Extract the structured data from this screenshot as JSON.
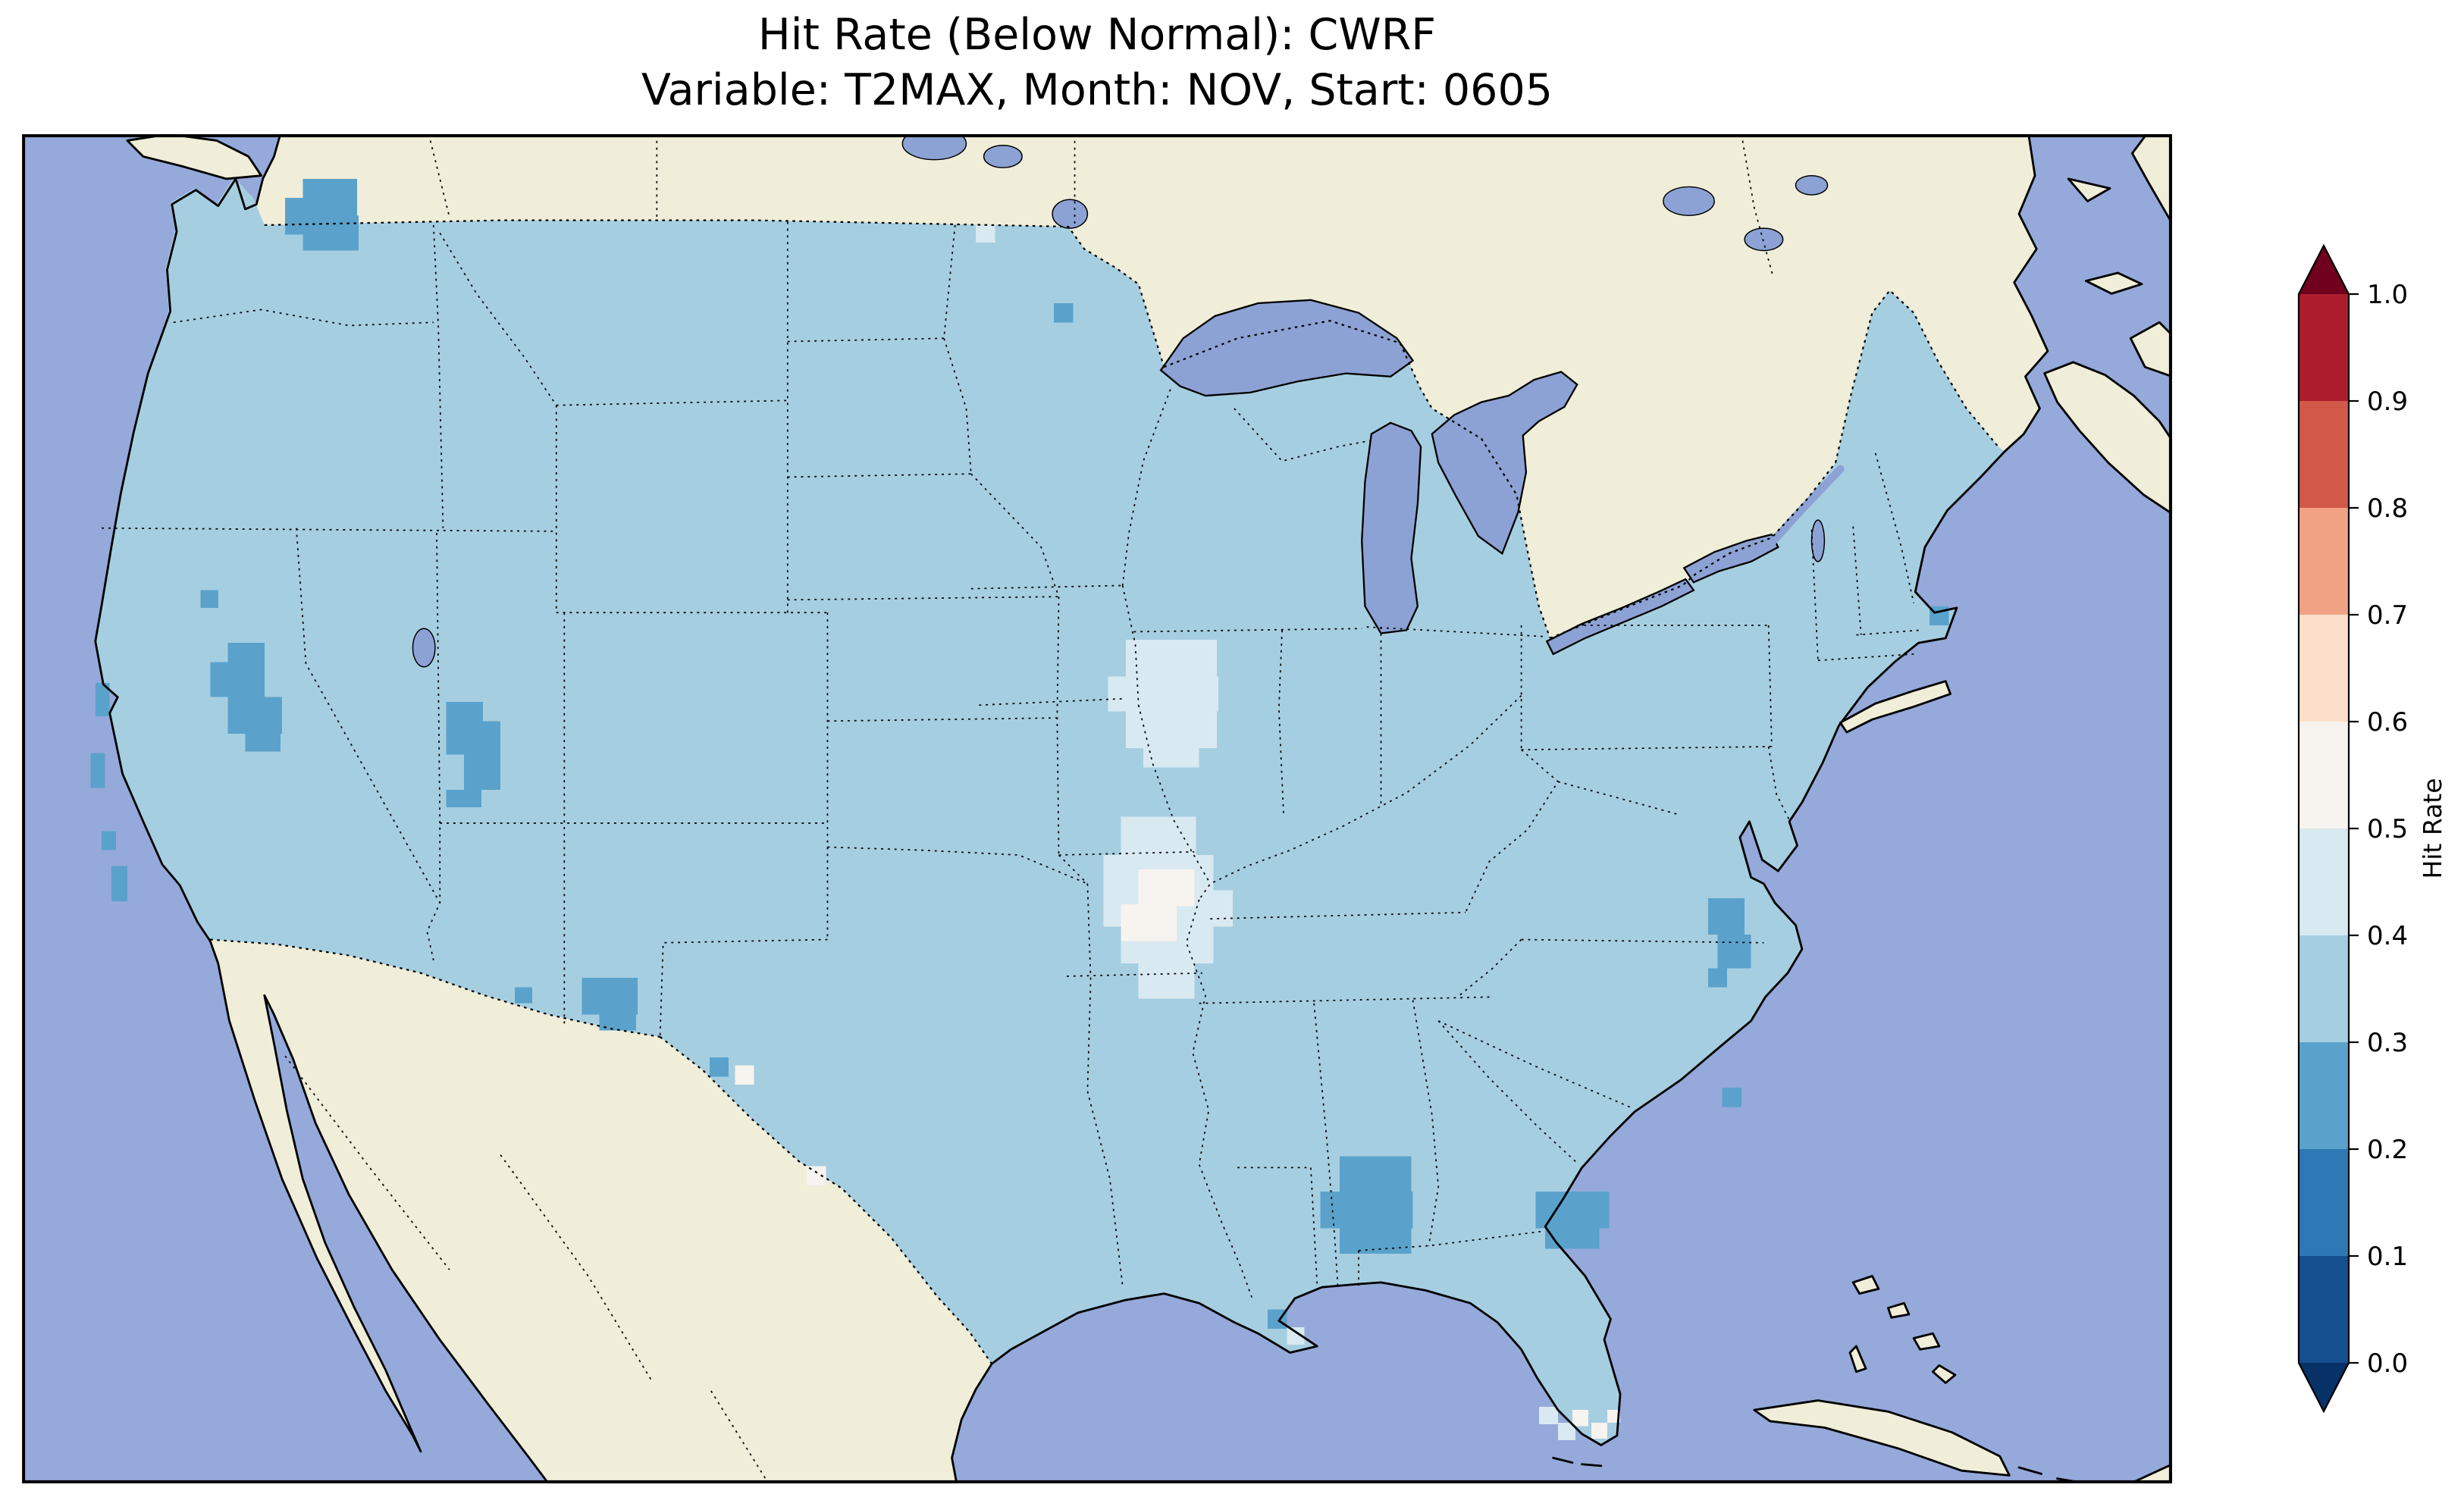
{
  "title": {
    "line1": "Hit Rate (Below Normal): CWRF",
    "line2": "Variable: T2MAX, Month: NOV, Start: 0605"
  },
  "colorbar": {
    "label": "Hit Rate",
    "ticks": [
      "1.0",
      "0.9",
      "0.8",
      "0.7",
      "0.6",
      "0.5",
      "0.4",
      "0.3",
      "0.2",
      "0.1",
      "0.0"
    ],
    "bins": [
      {
        "range": "0.9-1.0",
        "color": "#ab1c2c"
      },
      {
        "range": "0.8-0.9",
        "color": "#d25849"
      },
      {
        "range": "0.7-0.8",
        "color": "#f1a284"
      },
      {
        "range": "0.6-0.7",
        "color": "#fbdfca"
      },
      {
        "range": "0.5-0.6",
        "color": "#f7f3ef"
      },
      {
        "range": "0.4-0.5",
        "color": "#d9e9f1"
      },
      {
        "range": "0.3-0.4",
        "color": "#a6cee1"
      },
      {
        "range": "0.2-0.3",
        "color": "#5aa2cb"
      },
      {
        "range": "0.1-0.2",
        "color": "#2e78b5"
      },
      {
        "range": "0.0-0.1",
        "color": "#144f90"
      }
    ],
    "bin_colors": {
      "0.0-0.1": "#144f90",
      "0.1-0.2": "#2e78b5",
      "0.2-0.3": "#5aa2cb",
      "0.3-0.4": "#a6cee1",
      "0.4-0.5": "#d9e9f1",
      "0.5-0.6": "#f7f3ef",
      "0.6-0.7": "#fbdfca",
      "0.7-0.8": "#f1a284",
      "0.8-0.9": "#d25849",
      "0.9-1.0": "#ab1c2c"
    },
    "extend_over": "#71001f",
    "extend_under": "#083168"
  },
  "map": {
    "colors": {
      "ocean": "#95a9da",
      "land": "#f0edd9",
      "lake": "#8ca2d4",
      "fill_main": "#a6cee1"
    }
  },
  "chart_data": {
    "type": "heatmap",
    "title": "Hit Rate (Below Normal): CWRF",
    "subtitle": "Variable: T2MAX, Month: NOV, Start: 0605",
    "model": "CWRF",
    "variable": "T2MAX",
    "month": "NOV",
    "start": "0605",
    "colorbar_label": "Hit Rate",
    "colorbar_range": [
      0.0,
      1.0
    ],
    "colorbar_step": 0.1,
    "colormap": "RdBu reversed (dark blue = 0.0, dark red = 1.0), extend both ends",
    "legend_position": "right",
    "geography": "Continental United States with surrounding Canada, Mexico, Gulf of Mexico, Cuba and Atlantic",
    "base_value_bin": "0.3-0.4",
    "regions": [
      {
        "area": "Most of the continental U.S.",
        "hit_rate": "0.3-0.4"
      },
      {
        "area": "North-central Washington",
        "hit_rate": "0.2-0.3"
      },
      {
        "area": "Western Nevada",
        "hit_rate": "0.2-0.3"
      },
      {
        "area": "Central Utah",
        "hit_rate": "0.2-0.3"
      },
      {
        "area": "Central/southern New Mexico",
        "hit_rate": "0.2-0.3"
      },
      {
        "area": "Central California coast cells",
        "hit_rate": "0.2-0.3"
      },
      {
        "area": "Southern Alabama / Mississippi Gulf region",
        "hit_rate": "0.2-0.3"
      },
      {
        "area": "South Georgia / north Florida border",
        "hit_rate": "0.2-0.3"
      },
      {
        "area": "Coastal North Carolina",
        "hit_rate": "0.2-0.3"
      },
      {
        "area": "Southern Minnesota / northern Iowa patch",
        "hit_rate": "0.4-0.5"
      },
      {
        "area": "Missouri / southern Iowa patch",
        "hit_rate": "0.4-0.6"
      },
      {
        "area": "Scattered cells in west Texas / Oklahoma region",
        "hit_rate": "0.5-0.6"
      },
      {
        "area": "South Florida cells",
        "hit_rate": "0.4-0.6"
      }
    ],
    "patches": [
      {
        "bin": "0.2-0.3",
        "rects": [
          [
            176,
            28,
            34,
            23
          ],
          [
            165,
            40,
            23,
            23
          ],
          [
            188,
            51,
            23,
            22
          ],
          [
            176,
            62,
            12,
            11
          ],
          [
            112,
            286,
            11,
            11
          ],
          [
            129,
            319,
            23,
            12
          ],
          [
            118,
            331,
            34,
            22
          ],
          [
            129,
            353,
            34,
            23
          ],
          [
            140,
            376,
            22,
            11
          ],
          [
            266,
            356,
            23,
            12
          ],
          [
            266,
            368,
            34,
            21
          ],
          [
            277,
            389,
            23,
            22
          ],
          [
            266,
            411,
            22,
            11
          ],
          [
            46,
            344,
            9,
            21
          ],
          [
            43,
            388,
            9,
            22
          ],
          [
            50,
            437,
            9,
            12
          ],
          [
            56,
            459,
            10,
            22
          ],
          [
            309,
            535,
            11,
            10
          ],
          [
            351,
            529,
            35,
            23
          ],
          [
            362,
            552,
            23,
            10
          ],
          [
            431,
            579,
            12,
            12
          ],
          [
            826,
            641,
            45,
            22
          ],
          [
            814,
            663,
            58,
            23
          ],
          [
            826,
            686,
            45,
            16
          ],
          [
            949,
            663,
            46,
            23
          ],
          [
            955,
            686,
            34,
            13
          ],
          [
            1057,
            479,
            23,
            23
          ],
          [
            1063,
            502,
            21,
            21
          ],
          [
            1057,
            523,
            12,
            12
          ],
          [
            1066,
            598,
            12,
            12
          ],
          [
            781,
            737,
            12,
            12
          ],
          [
            647,
            106,
            12,
            12
          ],
          [
            1196,
            296,
            12,
            12
          ]
        ]
      },
      {
        "bin": "0.4-0.5",
        "rects": [
          [
            692,
            317,
            57,
            23
          ],
          [
            681,
            340,
            69,
            22
          ],
          [
            692,
            362,
            57,
            23
          ],
          [
            703,
            385,
            35,
            12
          ],
          [
            689,
            428,
            47,
            24
          ],
          [
            678,
            452,
            69,
            22
          ],
          [
            678,
            474,
            81,
            23
          ],
          [
            689,
            497,
            58,
            23
          ],
          [
            700,
            520,
            35,
            22
          ],
          [
            951,
            798,
            12,
            11
          ],
          [
            963,
            808,
            11,
            11
          ],
          [
            793,
            748,
            11,
            11
          ],
          [
            598,
            57,
            12,
            11
          ]
        ]
      },
      {
        "bin": "0.5-0.6",
        "rects": [
          [
            700,
            461,
            35,
            23
          ],
          [
            689,
            483,
            35,
            23
          ],
          [
            447,
            584,
            12,
            12
          ],
          [
            492,
            647,
            12,
            12
          ],
          [
            972,
            800,
            10,
            10
          ],
          [
            984,
            808,
            10,
            10
          ],
          [
            994,
            800,
            8,
            8
          ]
        ]
      }
    ]
  }
}
